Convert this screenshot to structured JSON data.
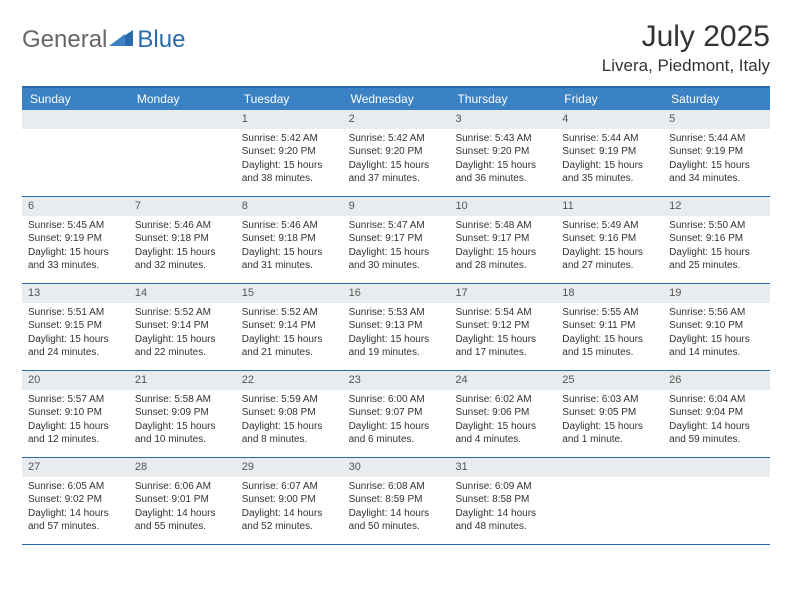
{
  "logo": {
    "text1": "General",
    "text2": "Blue"
  },
  "title": "July 2025",
  "location": "Livera, Piedmont, Italy",
  "colors": {
    "header_bg": "#3b82c4",
    "header_border": "#2b6aa8",
    "daynum_bg": "#e9ecef",
    "text": "#333333",
    "logo_gray": "#666666",
    "logo_blue": "#2b6aa8"
  },
  "weekdays": [
    "Sunday",
    "Monday",
    "Tuesday",
    "Wednesday",
    "Thursday",
    "Friday",
    "Saturday"
  ],
  "weeks": [
    [
      {
        "empty": true
      },
      {
        "empty": true
      },
      {
        "n": "1",
        "sr": "5:42 AM",
        "ss": "9:20 PM",
        "dl": "15 hours and 38 minutes."
      },
      {
        "n": "2",
        "sr": "5:42 AM",
        "ss": "9:20 PM",
        "dl": "15 hours and 37 minutes."
      },
      {
        "n": "3",
        "sr": "5:43 AM",
        "ss": "9:20 PM",
        "dl": "15 hours and 36 minutes."
      },
      {
        "n": "4",
        "sr": "5:44 AM",
        "ss": "9:19 PM",
        "dl": "15 hours and 35 minutes."
      },
      {
        "n": "5",
        "sr": "5:44 AM",
        "ss": "9:19 PM",
        "dl": "15 hours and 34 minutes."
      }
    ],
    [
      {
        "n": "6",
        "sr": "5:45 AM",
        "ss": "9:19 PM",
        "dl": "15 hours and 33 minutes."
      },
      {
        "n": "7",
        "sr": "5:46 AM",
        "ss": "9:18 PM",
        "dl": "15 hours and 32 minutes."
      },
      {
        "n": "8",
        "sr": "5:46 AM",
        "ss": "9:18 PM",
        "dl": "15 hours and 31 minutes."
      },
      {
        "n": "9",
        "sr": "5:47 AM",
        "ss": "9:17 PM",
        "dl": "15 hours and 30 minutes."
      },
      {
        "n": "10",
        "sr": "5:48 AM",
        "ss": "9:17 PM",
        "dl": "15 hours and 28 minutes."
      },
      {
        "n": "11",
        "sr": "5:49 AM",
        "ss": "9:16 PM",
        "dl": "15 hours and 27 minutes."
      },
      {
        "n": "12",
        "sr": "5:50 AM",
        "ss": "9:16 PM",
        "dl": "15 hours and 25 minutes."
      }
    ],
    [
      {
        "n": "13",
        "sr": "5:51 AM",
        "ss": "9:15 PM",
        "dl": "15 hours and 24 minutes."
      },
      {
        "n": "14",
        "sr": "5:52 AM",
        "ss": "9:14 PM",
        "dl": "15 hours and 22 minutes."
      },
      {
        "n": "15",
        "sr": "5:52 AM",
        "ss": "9:14 PM",
        "dl": "15 hours and 21 minutes."
      },
      {
        "n": "16",
        "sr": "5:53 AM",
        "ss": "9:13 PM",
        "dl": "15 hours and 19 minutes."
      },
      {
        "n": "17",
        "sr": "5:54 AM",
        "ss": "9:12 PM",
        "dl": "15 hours and 17 minutes."
      },
      {
        "n": "18",
        "sr": "5:55 AM",
        "ss": "9:11 PM",
        "dl": "15 hours and 15 minutes."
      },
      {
        "n": "19",
        "sr": "5:56 AM",
        "ss": "9:10 PM",
        "dl": "15 hours and 14 minutes."
      }
    ],
    [
      {
        "n": "20",
        "sr": "5:57 AM",
        "ss": "9:10 PM",
        "dl": "15 hours and 12 minutes."
      },
      {
        "n": "21",
        "sr": "5:58 AM",
        "ss": "9:09 PM",
        "dl": "15 hours and 10 minutes."
      },
      {
        "n": "22",
        "sr": "5:59 AM",
        "ss": "9:08 PM",
        "dl": "15 hours and 8 minutes."
      },
      {
        "n": "23",
        "sr": "6:00 AM",
        "ss": "9:07 PM",
        "dl": "15 hours and 6 minutes."
      },
      {
        "n": "24",
        "sr": "6:02 AM",
        "ss": "9:06 PM",
        "dl": "15 hours and 4 minutes."
      },
      {
        "n": "25",
        "sr": "6:03 AM",
        "ss": "9:05 PM",
        "dl": "15 hours and 1 minute."
      },
      {
        "n": "26",
        "sr": "6:04 AM",
        "ss": "9:04 PM",
        "dl": "14 hours and 59 minutes."
      }
    ],
    [
      {
        "n": "27",
        "sr": "6:05 AM",
        "ss": "9:02 PM",
        "dl": "14 hours and 57 minutes."
      },
      {
        "n": "28",
        "sr": "6:06 AM",
        "ss": "9:01 PM",
        "dl": "14 hours and 55 minutes."
      },
      {
        "n": "29",
        "sr": "6:07 AM",
        "ss": "9:00 PM",
        "dl": "14 hours and 52 minutes."
      },
      {
        "n": "30",
        "sr": "6:08 AM",
        "ss": "8:59 PM",
        "dl": "14 hours and 50 minutes."
      },
      {
        "n": "31",
        "sr": "6:09 AM",
        "ss": "8:58 PM",
        "dl": "14 hours and 48 minutes."
      },
      {
        "empty": true
      },
      {
        "empty": true
      }
    ]
  ],
  "labels": {
    "sunrise": "Sunrise:",
    "sunset": "Sunset:",
    "daylight": "Daylight:"
  }
}
